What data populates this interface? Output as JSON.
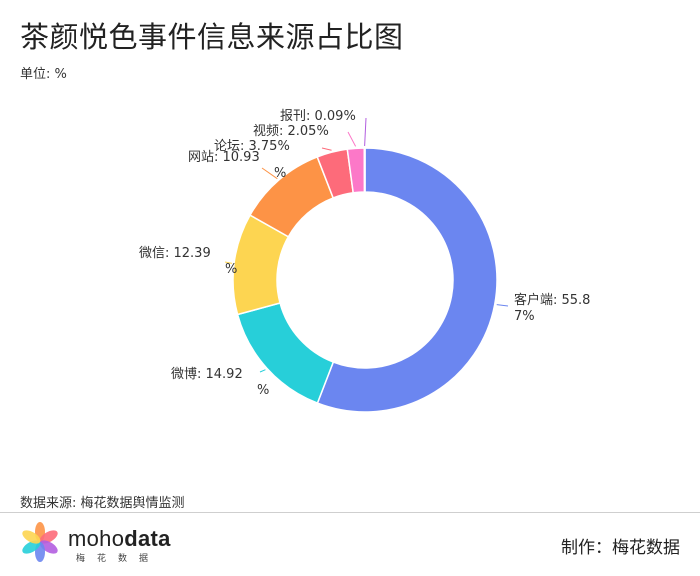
{
  "header": {
    "title": "茶颜悦色事件信息来源占比图",
    "unit": "单位: %"
  },
  "chart_data": {
    "type": "pie",
    "variant": "donut",
    "title": "茶颜悦色事件信息来源占比图",
    "unit": "%",
    "slices": [
      {
        "name": "客户端",
        "value": 55.87,
        "color": "#6b86f0",
        "label_lines": [
          "客户端: 55.8",
          "7%"
        ]
      },
      {
        "name": "微博",
        "value": 14.92,
        "color": "#27cfd9",
        "label_lines": [
          "微博: 14.92",
          "%"
        ]
      },
      {
        "name": "微信",
        "value": 12.39,
        "color": "#fdd551",
        "label_lines": [
          "微信: 12.39",
          "%"
        ]
      },
      {
        "name": "网站",
        "value": 10.93,
        "color": "#fd9346",
        "label_lines": [
          "网站: 10.93",
          "%"
        ]
      },
      {
        "name": "论坛",
        "value": 3.75,
        "color": "#fd6b7a",
        "label_lines": [
          "论坛: 3.75%"
        ]
      },
      {
        "name": "视频",
        "value": 2.05,
        "color": "#fc78c8",
        "label_lines": [
          "视频: 2.05%"
        ]
      },
      {
        "name": "报刊",
        "value": 0.09,
        "color": "#b25ee0",
        "label_lines": [
          "报刊: 0.09%"
        ]
      }
    ],
    "legend": "none"
  },
  "footer": {
    "source": "数据来源: 梅花数据舆情监测",
    "brand_light": "moho",
    "brand_bold": "data",
    "brand_sub": "梅花数据",
    "credit": "制作：梅花数据"
  }
}
